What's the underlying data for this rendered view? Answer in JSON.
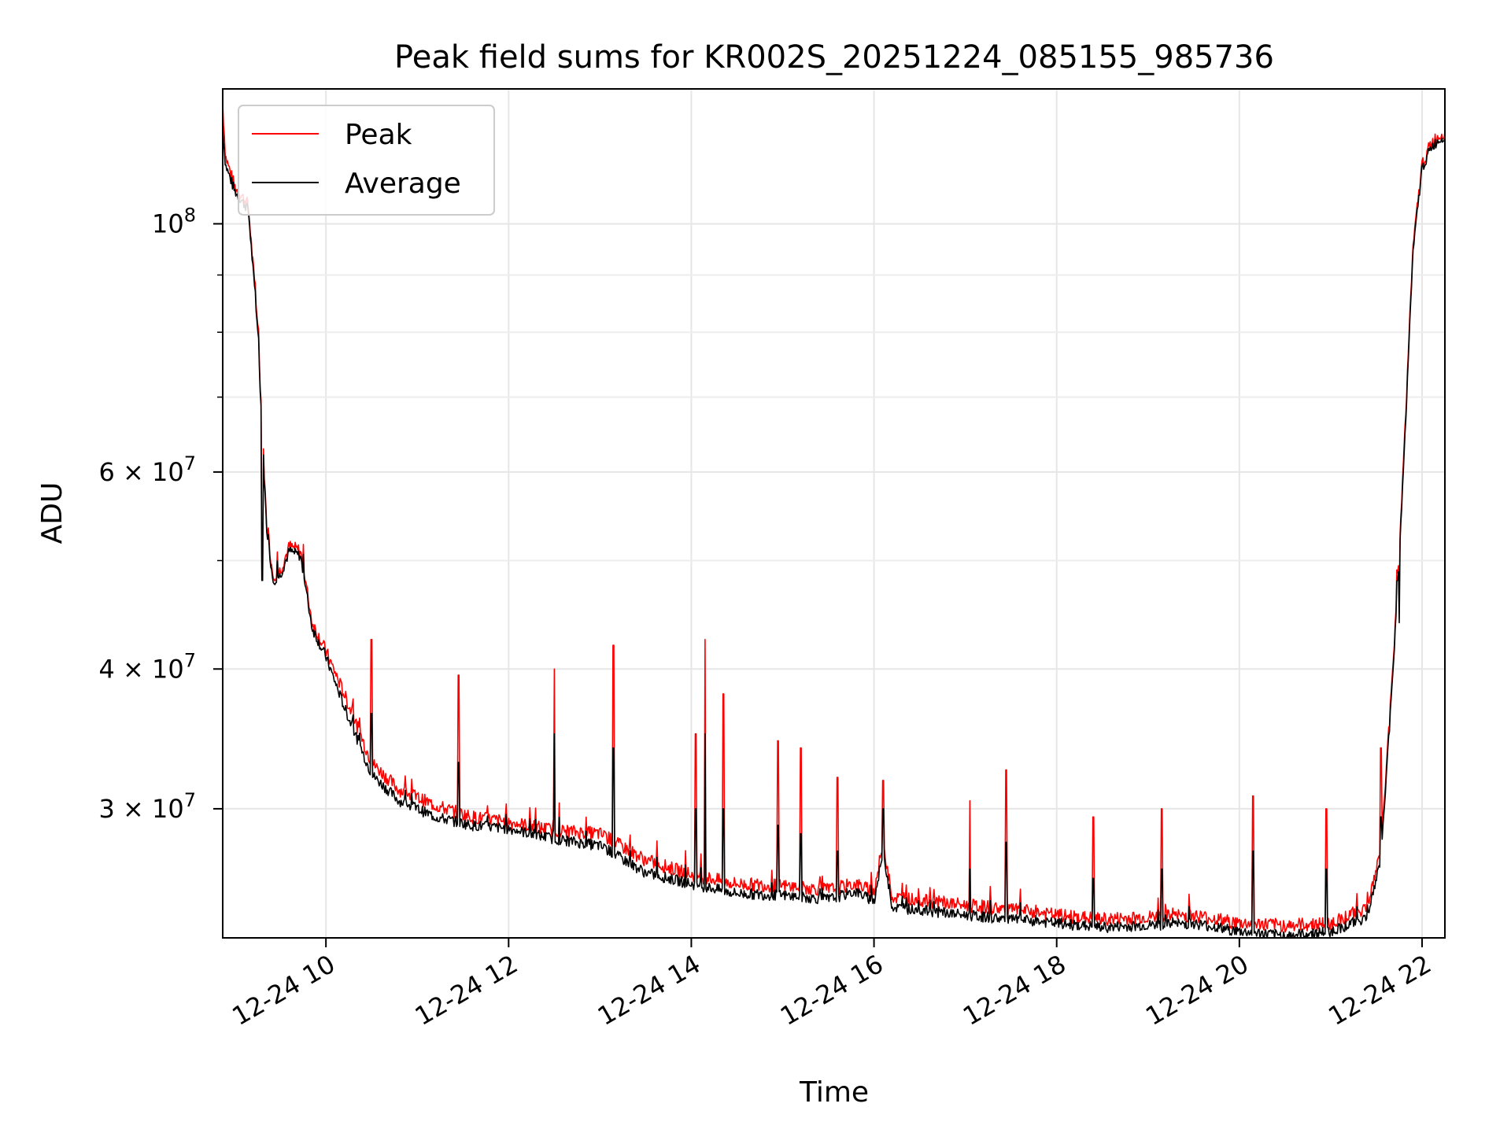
{
  "chart_data": {
    "type": "line",
    "title": "Peak field sums for KR002S_20251224_085155_985736",
    "xlabel": "Time",
    "ylabel": "ADU",
    "yscale": "log",
    "xlim_hours": [
      8.87,
      22.25
    ],
    "ylim": [
      23000000,
      132000000
    ],
    "grid": true,
    "legend_position": "upper-left",
    "x_ticks": [
      {
        "hour": 10,
        "label": "12-24 10"
      },
      {
        "hour": 12,
        "label": "12-24 12"
      },
      {
        "hour": 14,
        "label": "12-24 14"
      },
      {
        "hour": 16,
        "label": "12-24 16"
      },
      {
        "hour": 18,
        "label": "12-24 18"
      },
      {
        "hour": 20,
        "label": "12-24 20"
      },
      {
        "hour": 22,
        "label": "12-24 22"
      }
    ],
    "y_major_ticks": [
      {
        "value": 30000000,
        "base": "3 × 10",
        "exp": "7"
      },
      {
        "value": 40000000,
        "base": "4 × 10",
        "exp": "7"
      },
      {
        "value": 60000000,
        "base": "6 × 10",
        "exp": "7"
      },
      {
        "value": 100000000,
        "base": "10",
        "exp": "8"
      }
    ],
    "y_minor_ticks": [
      50000000,
      70000000,
      80000000,
      90000000
    ],
    "series": [
      {
        "name": "Peak",
        "color": "#ff0000",
        "x_hours": [
          8.87,
          8.9,
          9.0,
          9.15,
          9.25,
          9.35,
          9.42,
          9.5,
          9.6,
          9.72,
          9.85,
          10.0,
          10.2,
          10.5,
          10.8,
          11.2,
          11.6,
          12.0,
          12.5,
          13.0,
          13.5,
          14.0,
          14.5,
          15.0,
          15.5,
          15.8,
          16.0,
          16.1,
          16.2,
          16.6,
          17.0,
          17.5,
          18.0,
          18.5,
          19.0,
          19.5,
          20.0,
          20.5,
          21.0,
          21.4,
          21.55,
          21.68,
          21.8,
          21.9,
          22.0,
          22.1,
          22.25
        ],
        "values": [
          128000000,
          115000000,
          108000000,
          104000000,
          82000000,
          54000000,
          48500000,
          49000000,
          51500000,
          51000000,
          44000000,
          41500000,
          38000000,
          33000000,
          31200000,
          30200000,
          29500000,
          29200000,
          28700000,
          28500000,
          27000000,
          26200000,
          25700000,
          25600000,
          25400000,
          25700000,
          25300000,
          28000000,
          25000000,
          24800000,
          24600000,
          24400000,
          24100000,
          23900000,
          24000000,
          24100000,
          23700000,
          23600000,
          23700000,
          24500000,
          27500000,
          40000000,
          62000000,
          95000000,
          113000000,
          118000000,
          121000000
        ]
      },
      {
        "name": "Average",
        "color": "#000000",
        "x_hours": [
          8.87,
          8.9,
          9.0,
          9.15,
          9.25,
          9.35,
          9.42,
          9.5,
          9.6,
          9.72,
          9.85,
          10.0,
          10.2,
          10.5,
          10.8,
          11.2,
          11.6,
          12.0,
          12.5,
          13.0,
          13.5,
          14.0,
          14.5,
          15.0,
          15.5,
          15.8,
          16.0,
          16.1,
          16.2,
          16.6,
          17.0,
          17.5,
          18.0,
          18.5,
          19.0,
          19.5,
          20.0,
          20.5,
          21.0,
          21.4,
          21.55,
          21.68,
          21.8,
          21.9,
          22.0,
          22.1,
          22.25
        ],
        "values": [
          122000000,
          113000000,
          107000000,
          103000000,
          81000000,
          53500000,
          48000000,
          48500000,
          51000000,
          50500000,
          43500000,
          41000000,
          37000000,
          32200000,
          30500000,
          29500000,
          29000000,
          28800000,
          28200000,
          27800000,
          26300000,
          25700000,
          25200000,
          25100000,
          24900000,
          25300000,
          24800000,
          27500000,
          24500000,
          24300000,
          24100000,
          23900000,
          23700000,
          23500000,
          23600000,
          23700000,
          23300000,
          23100000,
          23300000,
          24000000,
          27000000,
          39500000,
          61000000,
          94000000,
          112000000,
          117000000,
          120000000
        ]
      }
    ],
    "spikes": [
      {
        "hour": 9.3,
        "peak": 49000000,
        "avg": 48000000
      },
      {
        "hour": 10.5,
        "peak": 42500000,
        "avg": 36500000
      },
      {
        "hour": 11.45,
        "peak": 39500000,
        "avg": 33000000
      },
      {
        "hour": 12.5,
        "peak": 40000000,
        "avg": 35000000
      },
      {
        "hour": 13.15,
        "peak": 42000000,
        "avg": 34000000
      },
      {
        "hour": 14.05,
        "peak": 35000000,
        "avg": 30000000
      },
      {
        "hour": 14.15,
        "peak": 42500000,
        "avg": 35000000
      },
      {
        "hour": 14.35,
        "peak": 38000000,
        "avg": 30000000
      },
      {
        "hour": 14.95,
        "peak": 34500000,
        "avg": 29000000
      },
      {
        "hour": 15.2,
        "peak": 34000000,
        "avg": 28500000
      },
      {
        "hour": 15.6,
        "peak": 32000000,
        "avg": 27500000
      },
      {
        "hour": 16.1,
        "peak": 31800000,
        "avg": 30000000
      },
      {
        "hour": 17.05,
        "peak": 30500000,
        "avg": 26500000
      },
      {
        "hour": 17.45,
        "peak": 32500000,
        "avg": 28000000
      },
      {
        "hour": 18.4,
        "peak": 29500000,
        "avg": 26000000
      },
      {
        "hour": 19.15,
        "peak": 30000000,
        "avg": 26500000
      },
      {
        "hour": 20.15,
        "peak": 30800000,
        "avg": 27500000
      },
      {
        "hour": 20.95,
        "peak": 30000000,
        "avg": 26500000
      },
      {
        "hour": 21.55,
        "peak": 34000000,
        "avg": 29500000
      },
      {
        "hour": 21.75,
        "peak": 47000000,
        "avg": 44000000
      }
    ]
  }
}
